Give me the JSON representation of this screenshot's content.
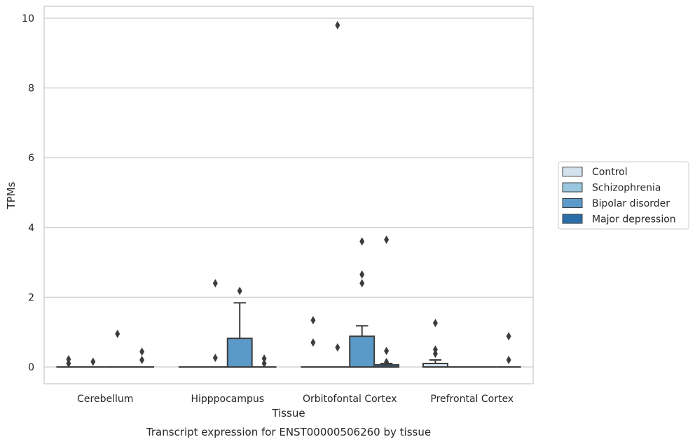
{
  "chart_data": {
    "type": "box",
    "caption": "Transcript expression for ENST00000506260 by tissue",
    "xlabel": "Tissue",
    "ylabel": "TPMs",
    "ylim": [
      -0.48,
      10.35
    ],
    "yticks": [
      0,
      2,
      4,
      6,
      8,
      10
    ],
    "grid": true,
    "legend_position": "right",
    "categories": [
      "Cerebellum",
      "Hipppocampus",
      "Orbitofontal Cortex",
      "Prefrontal Cortex"
    ],
    "series": [
      {
        "name": "Control",
        "color": "#d4e2ef",
        "boxes": [
          {
            "q1": 0,
            "median": 0,
            "q3": 0,
            "whisker_low": 0,
            "whisker_high": 0,
            "outliers": [
              0.1,
              0.22
            ]
          },
          {
            "q1": 0,
            "median": 0,
            "q3": 0,
            "whisker_low": 0,
            "whisker_high": 0,
            "outliers": []
          },
          {
            "q1": 0,
            "median": 0,
            "q3": 0,
            "whisker_low": 0,
            "whisker_high": 0,
            "outliers": [
              0.7,
              1.34
            ]
          },
          {
            "q1": 0,
            "median": 0,
            "q3": 0.1,
            "whisker_low": 0,
            "whisker_high": 0.2,
            "outliers": [
              0.38,
              0.5,
              1.26
            ]
          }
        ]
      },
      {
        "name": "Schizophrenia",
        "color": "#9ac7e0",
        "boxes": [
          {
            "q1": 0,
            "median": 0,
            "q3": 0,
            "whisker_low": 0,
            "whisker_high": 0,
            "outliers": [
              0.15
            ]
          },
          {
            "q1": 0,
            "median": 0,
            "q3": 0,
            "whisker_low": 0,
            "whisker_high": 0,
            "outliers": [
              0.26,
              2.4
            ]
          },
          {
            "q1": 0,
            "median": 0,
            "q3": 0,
            "whisker_low": 0,
            "whisker_high": 0,
            "outliers": [
              0.56,
              9.8
            ]
          },
          {
            "q1": 0,
            "median": 0,
            "q3": 0,
            "whisker_low": 0,
            "whisker_high": 0,
            "outliers": []
          }
        ]
      },
      {
        "name": "Bipolar disorder",
        "color": "#5b9ac8",
        "boxes": [
          {
            "q1": 0,
            "median": 0,
            "q3": 0,
            "whisker_low": 0,
            "whisker_high": 0,
            "outliers": [
              0.95
            ]
          },
          {
            "q1": 0,
            "median": 0,
            "q3": 0.82,
            "whisker_low": 0,
            "whisker_high": 1.84,
            "outliers": [
              2.18
            ]
          },
          {
            "q1": 0,
            "median": 0,
            "q3": 0.88,
            "whisker_low": 0,
            "whisker_high": 1.18,
            "outliers": [
              2.4,
              2.65,
              3.6
            ]
          },
          {
            "q1": 0,
            "median": 0,
            "q3": 0,
            "whisker_low": 0,
            "whisker_high": 0,
            "outliers": []
          }
        ]
      },
      {
        "name": "Major depression",
        "color": "#2a6ea9",
        "boxes": [
          {
            "q1": 0,
            "median": 0,
            "q3": 0,
            "whisker_low": 0,
            "whisker_high": 0,
            "outliers": [
              0.2,
              0.44
            ]
          },
          {
            "q1": 0,
            "median": 0,
            "q3": 0,
            "whisker_low": 0,
            "whisker_high": 0,
            "outliers": [
              0.1,
              0.24
            ]
          },
          {
            "q1": 0,
            "median": 0,
            "q3": 0.06,
            "whisker_low": 0,
            "whisker_high": 0.1,
            "outliers": [
              0.14,
              0.46,
              3.65
            ]
          },
          {
            "q1": 0,
            "median": 0,
            "q3": 0,
            "whisker_low": 0,
            "whisker_high": 0,
            "outliers": [
              0.2,
              0.88
            ]
          }
        ]
      }
    ]
  }
}
